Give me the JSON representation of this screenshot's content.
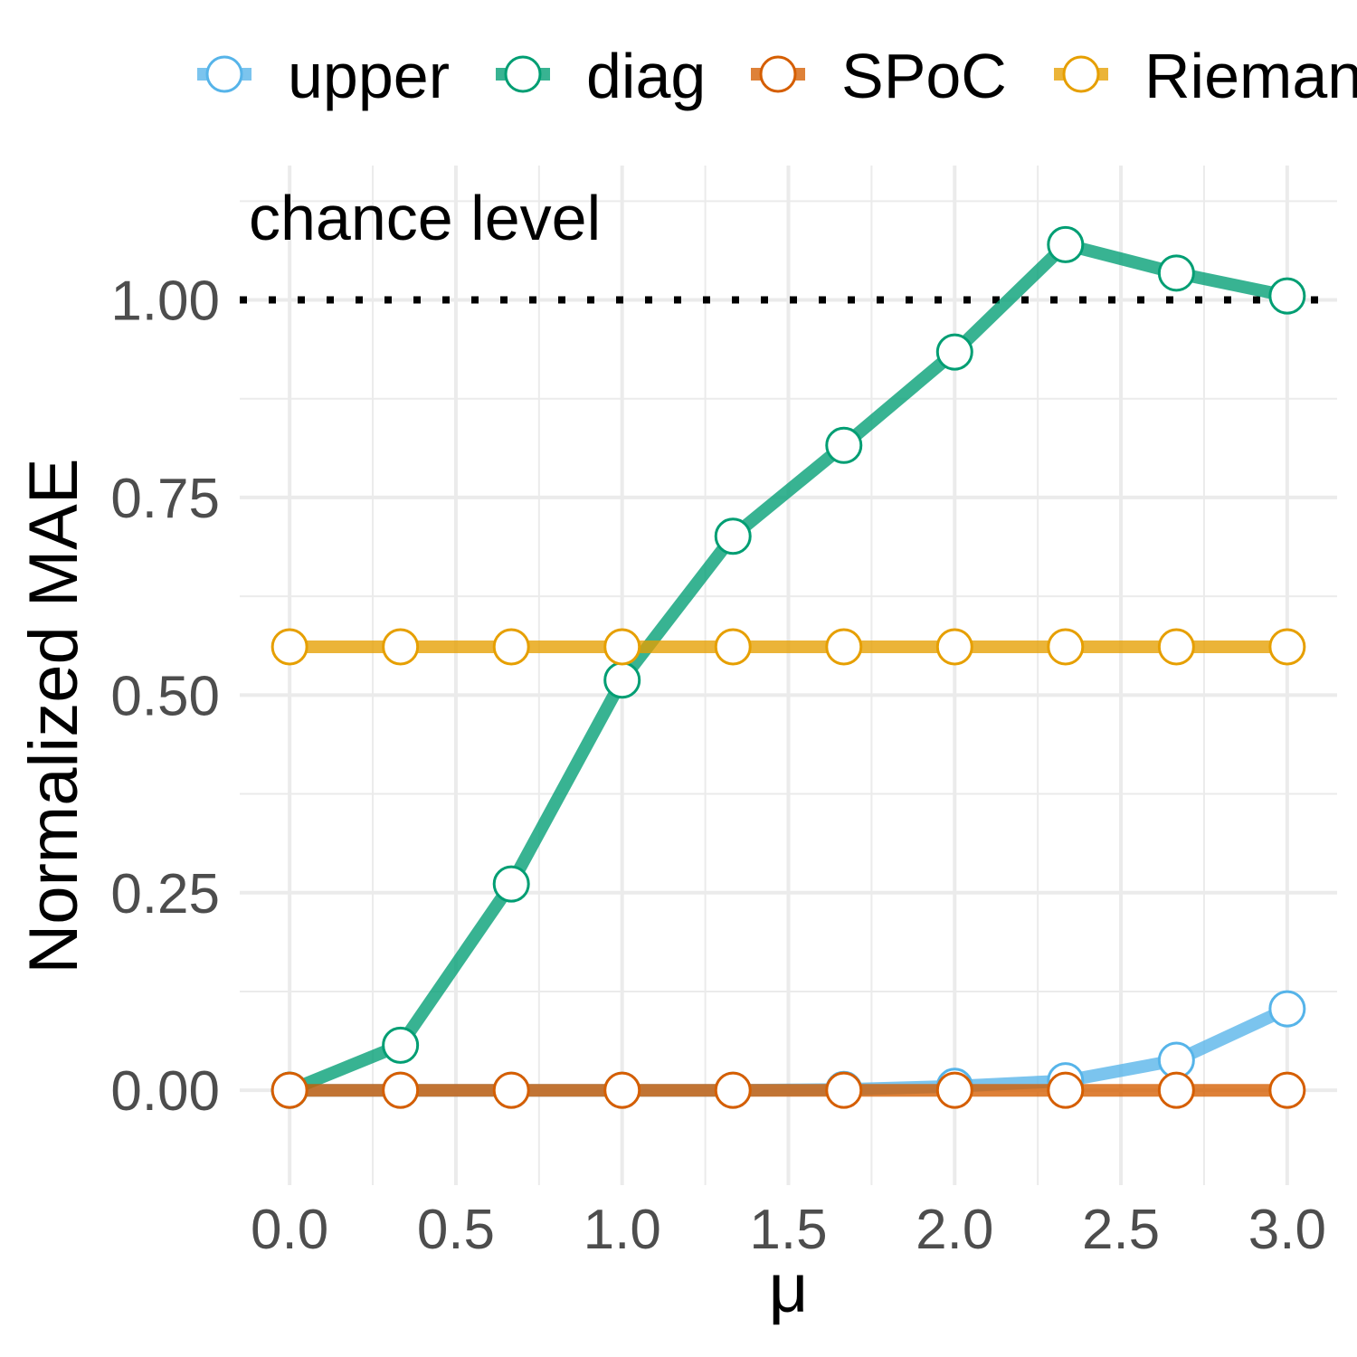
{
  "chart_data": {
    "type": "line",
    "xlabel": "μ",
    "ylabel": "Normalized MAE",
    "xlim": [
      -0.15,
      3.15
    ],
    "ylim": [
      -0.12,
      1.17
    ],
    "x_ticks": [
      0.0,
      0.5,
      1.0,
      1.5,
      2.0,
      2.5,
      3.0
    ],
    "x_tick_labels": [
      "0.0",
      "0.5",
      "1.0",
      "1.5",
      "2.0",
      "2.5",
      "3.0"
    ],
    "y_ticks": [
      0.0,
      0.25,
      0.5,
      0.75,
      1.0
    ],
    "y_tick_labels": [
      "0.00",
      "0.25",
      "0.50",
      "0.75",
      "1.00"
    ],
    "grid": true,
    "legend_position": "top",
    "x": [
      0.0,
      0.3333,
      0.6667,
      1.0,
      1.3333,
      1.6667,
      2.0,
      2.3333,
      2.6667,
      3.0
    ],
    "series": [
      {
        "name": "upper",
        "color": "#56B4E9",
        "values": [
          0.0,
          0.0,
          0.0,
          0.0,
          0.0,
          0.001,
          0.005,
          0.012,
          0.038,
          0.103
        ]
      },
      {
        "name": "diag",
        "color": "#009E73",
        "values": [
          0.0,
          0.057,
          0.261,
          0.519,
          0.701,
          0.816,
          0.934,
          1.07,
          1.034,
          1.005
        ]
      },
      {
        "name": "SPoC",
        "color": "#D55E00",
        "values": [
          0.0,
          0.0,
          0.0,
          0.0,
          0.0,
          0.0,
          0.0,
          0.0,
          0.0,
          0.0
        ]
      },
      {
        "name": "Riemann",
        "color": "#E69F00",
        "values": [
          0.561,
          0.561,
          0.561,
          0.561,
          0.561,
          0.561,
          0.561,
          0.561,
          0.561,
          0.561
        ]
      }
    ],
    "reference_line": {
      "y": 1.0,
      "style": "dotted",
      "color": "#000000",
      "label": "chance level"
    }
  }
}
